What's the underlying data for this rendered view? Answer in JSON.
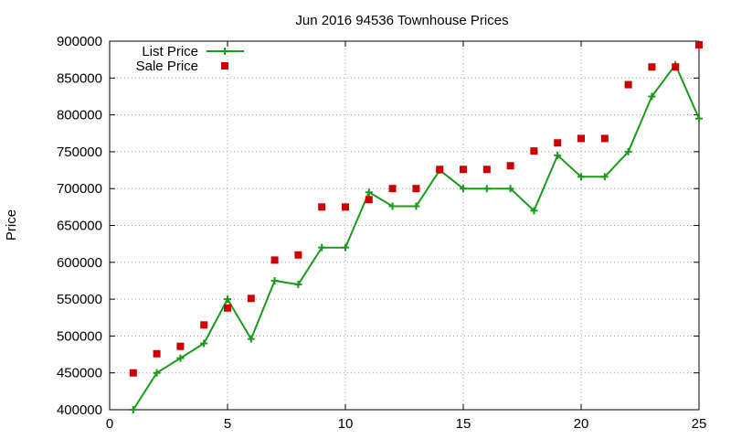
{
  "chart_data": {
    "type": "line",
    "title": "Jun 2016 94536 Townhouse Prices",
    "xlabel": "",
    "ylabel": "Price",
    "xlim": [
      0,
      25
    ],
    "ylim": [
      400000,
      900000
    ],
    "x_ticks": [
      0,
      5,
      10,
      15,
      20,
      25
    ],
    "y_ticks": [
      400000,
      450000,
      500000,
      550000,
      600000,
      650000,
      700000,
      750000,
      800000,
      850000,
      900000
    ],
    "grid": true,
    "legend_position": "top-left",
    "x": [
      1,
      2,
      3,
      4,
      5,
      6,
      7,
      8,
      9,
      10,
      11,
      12,
      13,
      14,
      15,
      16,
      17,
      18,
      19,
      20,
      21,
      22,
      23,
      24,
      25
    ],
    "series": [
      {
        "name": "List Price",
        "style": "line-with-plus-markers",
        "color": "#1a9a1a",
        "values": [
          400000,
          450000,
          470000,
          490000,
          550000,
          496000,
          575000,
          570000,
          620000,
          620000,
          695000,
          676000,
          676000,
          725000,
          700000,
          700000,
          700000,
          670000,
          745000,
          716000,
          716000,
          750000,
          825000,
          868000,
          795000
        ]
      },
      {
        "name": "Sale Price",
        "style": "square-markers",
        "color": "#cc0000",
        "values": [
          450000,
          476000,
          486000,
          515000,
          538000,
          551000,
          603000,
          610000,
          675000,
          675000,
          685000,
          700000,
          700000,
          726000,
          726000,
          726000,
          731000,
          751000,
          762000,
          768000,
          768000,
          841000,
          865000,
          865000,
          895000
        ]
      }
    ]
  }
}
